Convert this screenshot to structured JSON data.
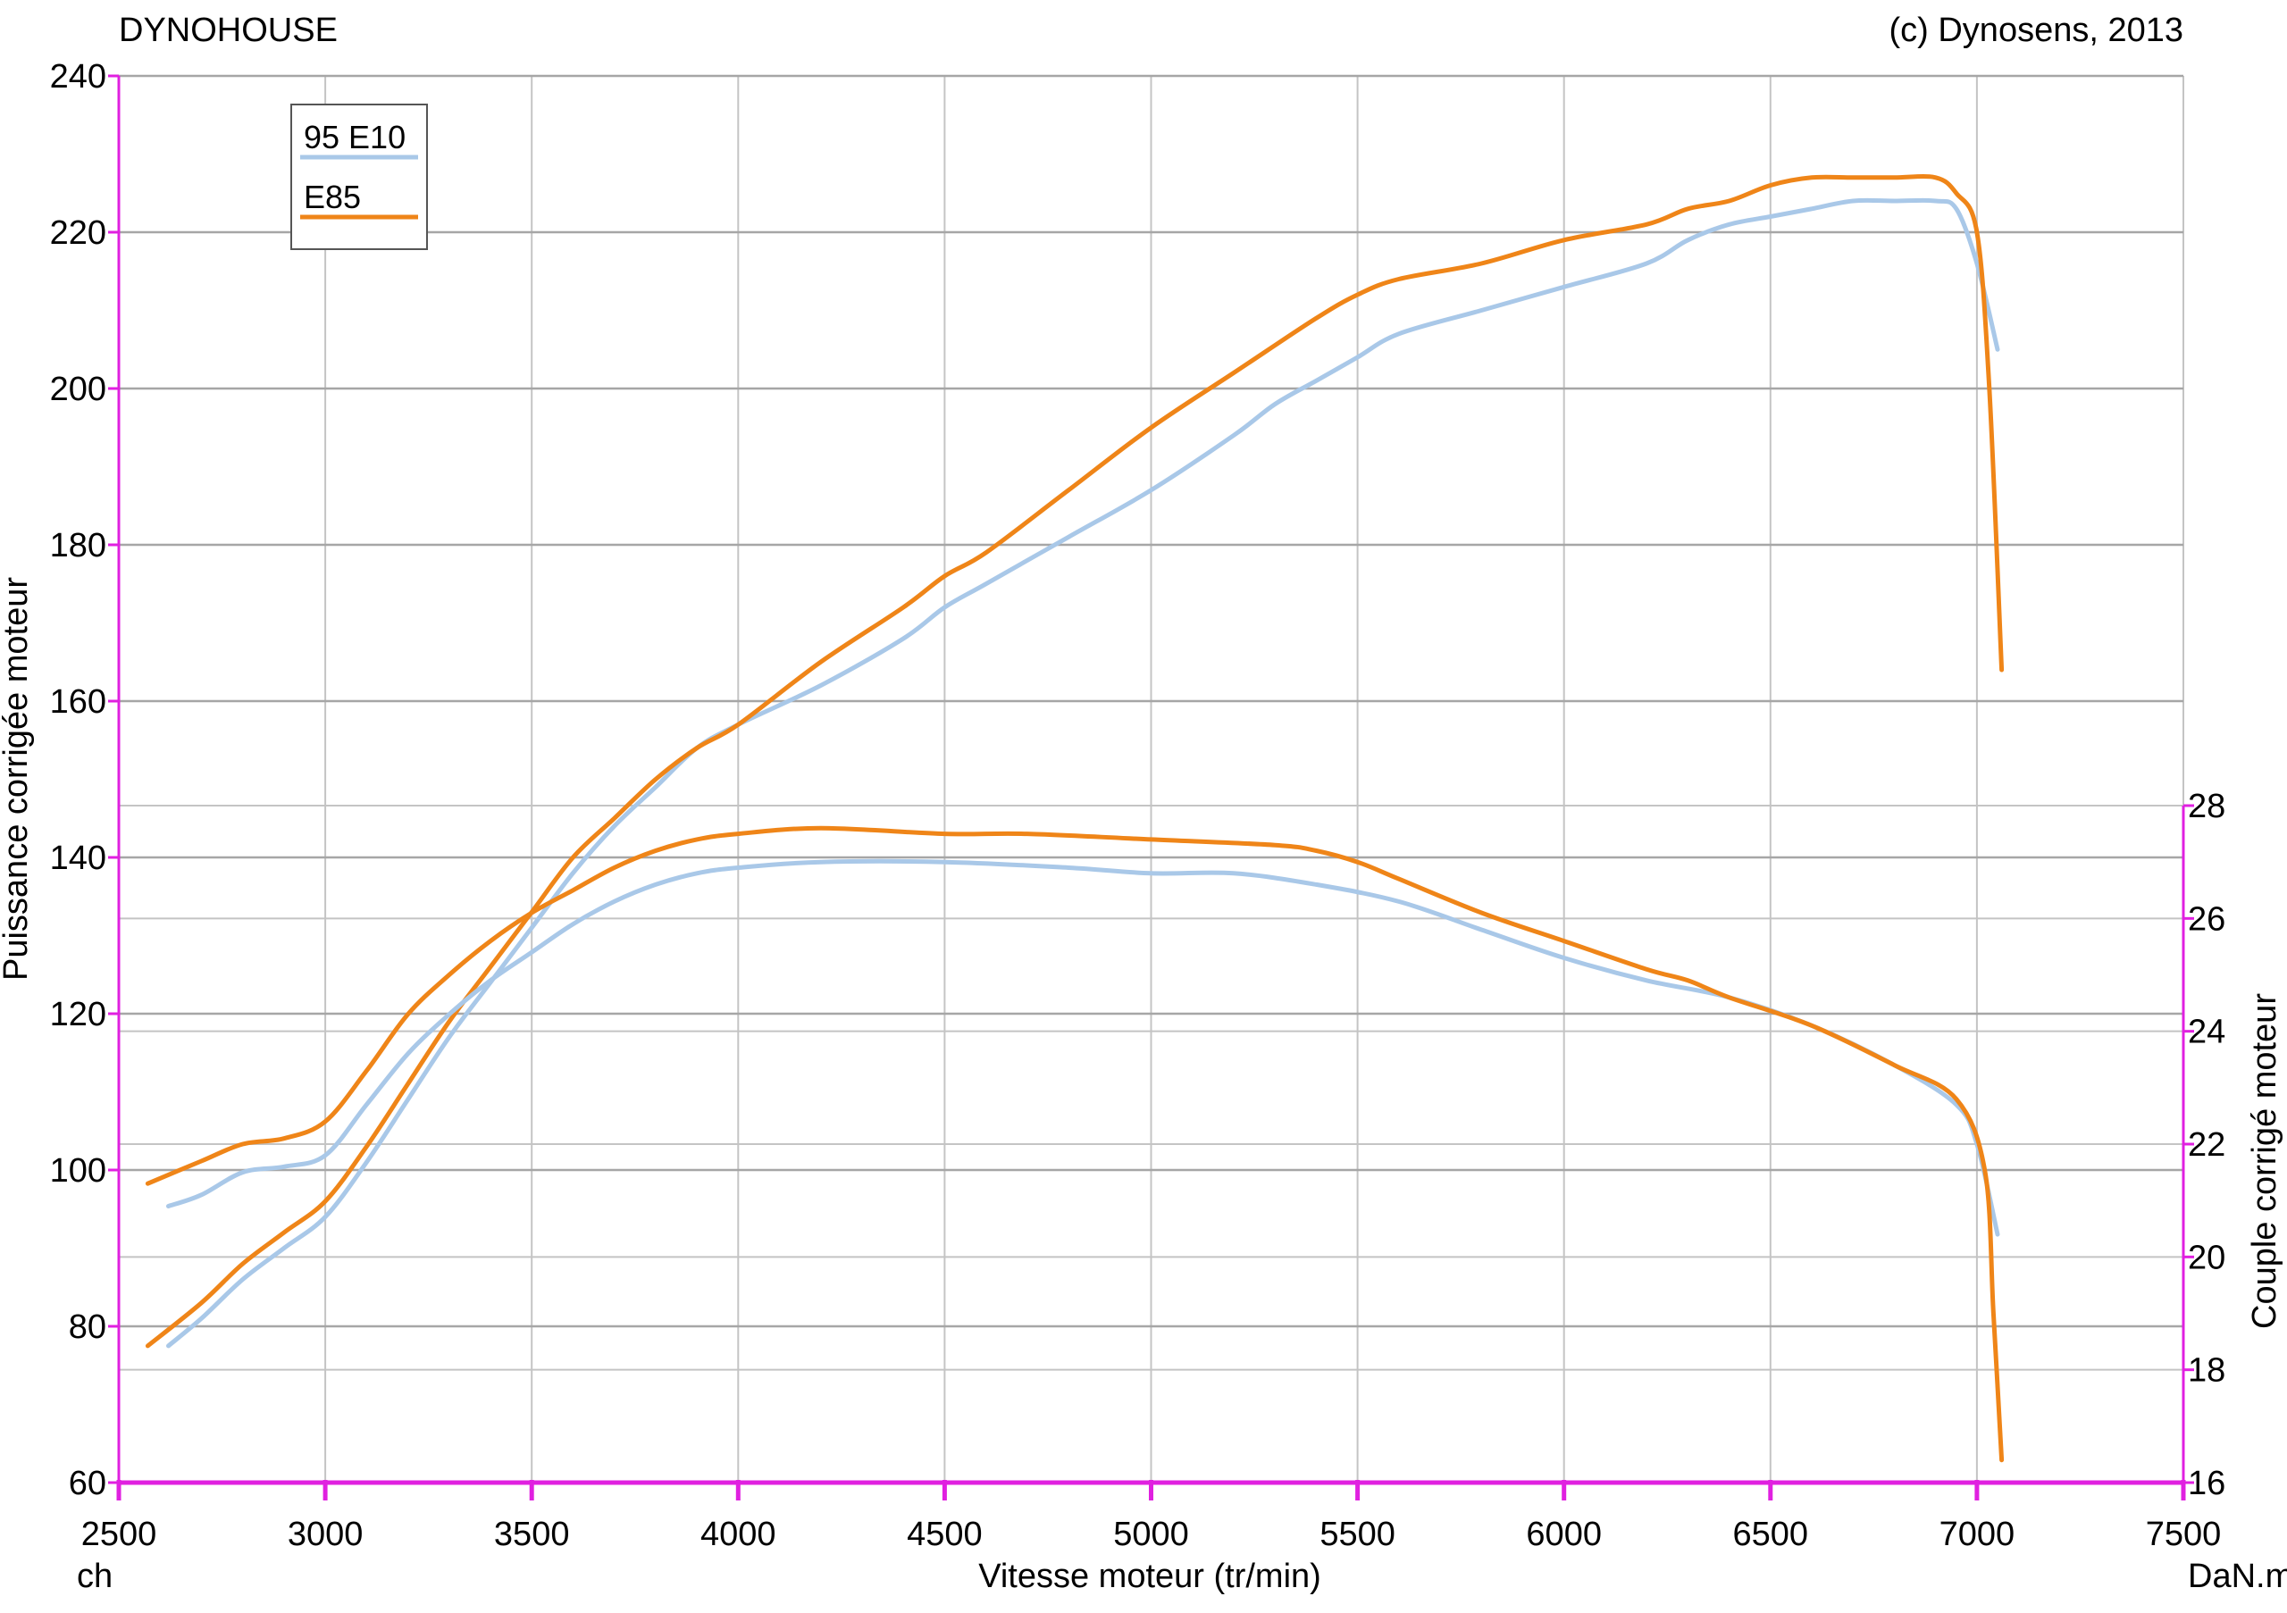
{
  "chart_data": {
    "type": "line",
    "header_left": "DYNOHOUSE",
    "header_right": "(c) Dynosens, 2013",
    "xlabel": "Vitesse moteur (tr/min)",
    "ylabel_left": "Puissance corrigée moteur",
    "ylabel_right": "Couple corrigé moteur",
    "unit_left": "ch",
    "unit_right": "DaN.m",
    "xlim": [
      2500,
      7500
    ],
    "ylim_left": [
      60,
      240
    ],
    "ylim_right": [
      16,
      28
    ],
    "x_ticks": [
      "2500",
      "3000",
      "3500",
      "4000",
      "4500",
      "5000",
      "5500",
      "6000",
      "6500",
      "7000",
      "7500"
    ],
    "y_left_ticks": [
      "60",
      "80",
      "100",
      "120",
      "140",
      "160",
      "180",
      "200",
      "220",
      "240"
    ],
    "y_right_ticks": [
      "16",
      "18",
      "20",
      "22",
      "24",
      "26",
      "28"
    ],
    "grid": true,
    "legend": {
      "position": "top-left",
      "entries": [
        "95 E10",
        "E85"
      ]
    },
    "colors": {
      "95 E10": "#a9c8e8",
      "E85": "#ef8518",
      "axis": "#e020e0",
      "grid": "#a6a6a6"
    },
    "series": [
      {
        "name": "95 E10",
        "quantity": "power",
        "axis": "left",
        "x": [
          2620,
          2700,
          2800,
          2900,
          3000,
          3100,
          3200,
          3300,
          3400,
          3500,
          3600,
          3700,
          3800,
          3900,
          4000,
          4200,
          4400,
          4500,
          4600,
          4800,
          5000,
          5200,
          5300,
          5400,
          5500,
          5600,
          5800,
          6000,
          6200,
          6300,
          6400,
          6500,
          6600,
          6700,
          6800,
          6900,
          6950,
          7000,
          7050
        ],
        "y": [
          77.5,
          81,
          86,
          90,
          94,
          101,
          109,
          117,
          124,
          131,
          138,
          144,
          149,
          154,
          157,
          162,
          168,
          172,
          175,
          181,
          187,
          194,
          198,
          201,
          204,
          207,
          210,
          213,
          216,
          219,
          221,
          222,
          223,
          224,
          224,
          224,
          223,
          216,
          205
        ]
      },
      {
        "name": "E85",
        "quantity": "power",
        "axis": "left",
        "x": [
          2570,
          2700,
          2800,
          2900,
          3000,
          3100,
          3200,
          3300,
          3400,
          3500,
          3600,
          3700,
          3800,
          3900,
          4000,
          4200,
          4400,
          4500,
          4600,
          4800,
          5000,
          5200,
          5400,
          5500,
          5600,
          5800,
          6000,
          6200,
          6300,
          6400,
          6500,
          6600,
          6700,
          6800,
          6900,
          6950,
          7000,
          7030,
          7060
        ],
        "y": [
          77.5,
          83,
          88,
          92,
          96,
          103,
          111,
          119,
          126,
          133,
          140,
          145,
          150,
          154,
          157,
          165,
          172,
          176,
          179,
          187,
          195,
          202,
          209,
          212,
          214,
          216,
          219,
          221,
          223,
          224,
          226,
          227,
          227,
          227,
          227,
          225,
          220,
          200,
          164
        ]
      },
      {
        "name": "95 E10",
        "quantity": "torque",
        "axis": "right",
        "x": [
          2620,
          2700,
          2800,
          2900,
          3000,
          3100,
          3200,
          3300,
          3400,
          3500,
          3600,
          3700,
          3800,
          3900,
          4000,
          4200,
          4500,
          4800,
          5000,
          5200,
          5400,
          5600,
          5800,
          6000,
          6200,
          6400,
          6600,
          6800,
          6950,
          7000,
          7050
        ],
        "y": [
          20.9,
          21.1,
          21.5,
          21.6,
          21.8,
          22.7,
          23.6,
          24.3,
          24.9,
          25.4,
          25.9,
          26.3,
          26.6,
          26.8,
          26.9,
          27.0,
          27.0,
          26.9,
          26.8,
          26.8,
          26.6,
          26.3,
          25.8,
          25.3,
          24.9,
          24.6,
          24.1,
          23.4,
          22.7,
          22.0,
          20.4
        ]
      },
      {
        "name": "E85",
        "quantity": "torque",
        "axis": "right",
        "x": [
          2570,
          2700,
          2800,
          2900,
          3000,
          3100,
          3200,
          3300,
          3400,
          3500,
          3600,
          3700,
          3800,
          3900,
          4000,
          4200,
          4500,
          4700,
          5000,
          5300,
          5400,
          5500,
          5600,
          5800,
          6000,
          6200,
          6300,
          6400,
          6600,
          6800,
          6950,
          7020,
          7040,
          7060
        ],
        "y": [
          21.3,
          21.7,
          22.0,
          22.1,
          22.4,
          23.3,
          24.3,
          25.0,
          25.6,
          26.1,
          26.5,
          26.9,
          27.2,
          27.4,
          27.5,
          27.6,
          27.5,
          27.5,
          27.4,
          27.3,
          27.2,
          27.0,
          26.7,
          26.1,
          25.6,
          25.1,
          24.9,
          24.6,
          24.1,
          23.4,
          22.8,
          21.5,
          19.0,
          16.4
        ]
      }
    ]
  }
}
